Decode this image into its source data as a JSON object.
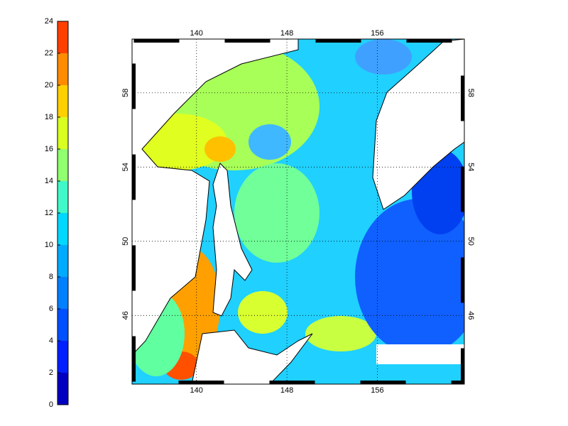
{
  "colorbar": {
    "ticks": [
      0,
      2,
      4,
      6,
      8,
      10,
      12,
      14,
      16,
      18,
      20,
      22,
      24
    ],
    "clim": [
      0,
      24
    ],
    "colors": [
      "#0000c0",
      "#0020ff",
      "#0050ff",
      "#0080ff",
      "#00aaff",
      "#00d8ff",
      "#40f8c8",
      "#90ff70",
      "#d8ff20",
      "#ffd000",
      "#ff8c00",
      "#ff4000"
    ]
  },
  "map": {
    "lon_ticks": [
      140,
      148,
      156
    ],
    "lat_ticks": [
      46,
      50,
      54,
      58
    ],
    "xlim": [
      134.3,
      163.7
    ],
    "ylim": [
      42.3,
      60.9
    ],
    "grid": true
  }
}
